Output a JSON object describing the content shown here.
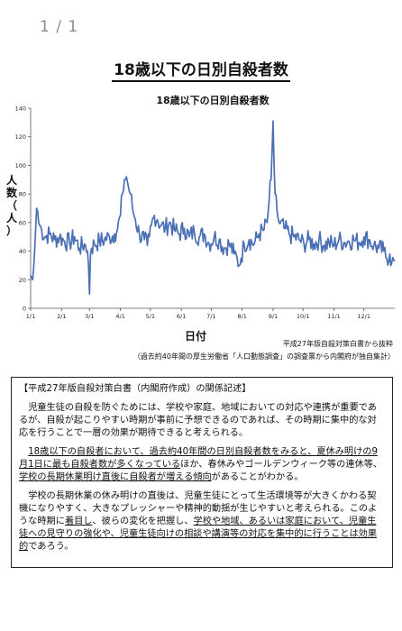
{
  "page_indicator": "1 / 1",
  "document": {
    "title": "18歳以下の日別自殺者数",
    "ylabel_chars": [
      "人",
      "数",
      "（",
      "人",
      "）"
    ],
    "xlabel": "日付",
    "source_line1": "平成27年版自殺対策白書から抜粋",
    "source_line2": "（過去約40年間の厚生労働省「人口動態調査」の調査票から内閣府が独自集計）"
  },
  "note": {
    "heading": "【平成27年版自殺対策白書（内閣府作成）の関係記述】",
    "p1": "児童生徒の自殺を防ぐためには、学校や家庭、地域においての対応や連携が重要であるが、自殺が起こりやすい時期が事前に予想できるのであれば、その時期に集中的な対応を行うことで一層の効果が期待できると考えられる。",
    "p2_u1": "18歳以下の自殺者において、過去約40年間の日別自殺者数をみると、夏休み明けの9月1日に最も自殺者数が多くなっている",
    "p2_t1": "ほか、春休みやゴールデンウィーク等の連休等、",
    "p2_u2": "学校の長期休業明け直後に自殺者が増える傾向",
    "p2_t2": "があることがわかる。",
    "p3_t1": "学校の長期休業の休み明けの直後は、児童生徒にとって生活環境等が大きくかわる契機になりやすく、大きなプレッシャーや精神的動揺が生じやすいと考えられる。このような時期に",
    "p3_u1": "着目し",
    "p3_t2": "、彼らの変化を把握し、",
    "p3_u2": "学校や地域、あるいは家庭において、児童生徒への見守りの強化や、児童生徒向けの相談や講演等の対応を集中的に行うことは効果的",
    "p3_t3": "であろう。"
  },
  "chart_data": {
    "type": "line",
    "title": "18歳以下の日別自殺者数",
    "xlabel": "日付",
    "ylabel": "人数（人）",
    "ylim": [
      0,
      140
    ],
    "yticks": [
      0,
      20,
      40,
      60,
      80,
      100,
      120,
      140
    ],
    "xticks": [
      "1/1",
      "2/1",
      "3/1",
      "4/1",
      "5/1",
      "6/1",
      "7/1",
      "8/1",
      "9/1",
      "10/1",
      "11/1",
      "12/1"
    ],
    "xtick_days": [
      1,
      32,
      60,
      91,
      121,
      152,
      182,
      213,
      244,
      274,
      305,
      335
    ],
    "days": 366,
    "color": "#4a6fb5",
    "grid": false,
    "series_keypoints": [
      [
        1,
        23
      ],
      [
        3,
        20
      ],
      [
        4,
        28
      ],
      [
        5,
        40
      ],
      [
        6,
        55
      ],
      [
        7,
        70
      ],
      [
        8,
        68
      ],
      [
        9,
        60
      ],
      [
        10,
        58
      ],
      [
        12,
        55
      ],
      [
        15,
        50
      ],
      [
        20,
        52
      ],
      [
        25,
        48
      ],
      [
        30,
        50
      ],
      [
        35,
        47
      ],
      [
        40,
        46
      ],
      [
        45,
        50
      ],
      [
        50,
        42
      ],
      [
        55,
        45
      ],
      [
        58,
        40
      ],
      [
        59,
        30
      ],
      [
        60,
        10
      ],
      [
        61,
        38
      ],
      [
        62,
        42
      ],
      [
        65,
        45
      ],
      [
        70,
        47
      ],
      [
        75,
        48
      ],
      [
        80,
        50
      ],
      [
        85,
        52
      ],
      [
        88,
        55
      ],
      [
        91,
        65
      ],
      [
        93,
        80
      ],
      [
        95,
        90
      ],
      [
        97,
        92
      ],
      [
        99,
        85
      ],
      [
        101,
        80
      ],
      [
        103,
        70
      ],
      [
        106,
        62
      ],
      [
        110,
        52
      ],
      [
        115,
        48
      ],
      [
        118,
        44
      ],
      [
        120,
        50
      ],
      [
        122,
        58
      ],
      [
        125,
        65
      ],
      [
        128,
        62
      ],
      [
        132,
        58
      ],
      [
        136,
        56
      ],
      [
        140,
        60
      ],
      [
        145,
        55
      ],
      [
        150,
        52
      ],
      [
        155,
        56
      ],
      [
        160,
        50
      ],
      [
        165,
        54
      ],
      [
        170,
        50
      ],
      [
        175,
        52
      ],
      [
        180,
        45
      ],
      [
        185,
        50
      ],
      [
        190,
        48
      ],
      [
        195,
        42
      ],
      [
        200,
        45
      ],
      [
        205,
        38
      ],
      [
        208,
        35
      ],
      [
        210,
        30
      ],
      [
        212,
        35
      ],
      [
        215,
        45
      ],
      [
        220,
        48
      ],
      [
        225,
        45
      ],
      [
        230,
        52
      ],
      [
        235,
        55
      ],
      [
        238,
        60
      ],
      [
        240,
        75
      ],
      [
        242,
        90
      ],
      [
        243,
        110
      ],
      [
        244,
        131
      ],
      [
        245,
        100
      ],
      [
        246,
        80
      ],
      [
        248,
        68
      ],
      [
        250,
        60
      ],
      [
        255,
        56
      ],
      [
        260,
        52
      ],
      [
        265,
        50
      ],
      [
        270,
        48
      ],
      [
        275,
        45
      ],
      [
        280,
        48
      ],
      [
        285,
        45
      ],
      [
        290,
        48
      ],
      [
        295,
        44
      ],
      [
        300,
        46
      ],
      [
        305,
        44
      ],
      [
        310,
        48
      ],
      [
        315,
        46
      ],
      [
        320,
        47
      ],
      [
        325,
        48
      ],
      [
        330,
        46
      ],
      [
        335,
        50
      ],
      [
        340,
        48
      ],
      [
        345,
        44
      ],
      [
        350,
        42
      ],
      [
        355,
        40
      ],
      [
        358,
        35
      ],
      [
        361,
        38
      ],
      [
        363,
        32
      ],
      [
        366,
        33
      ]
    ]
  }
}
